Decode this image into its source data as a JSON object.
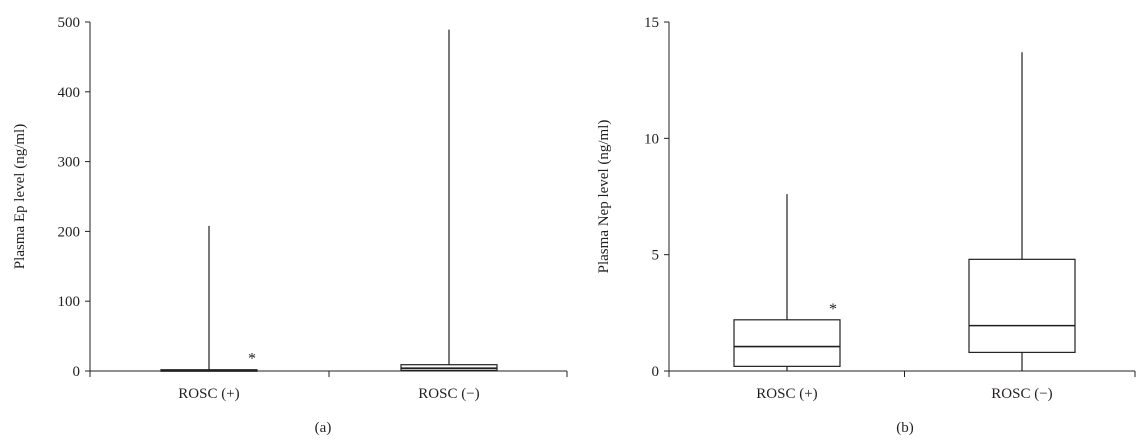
{
  "chart_data": [
    {
      "type": "box",
      "panel_label": "(a)",
      "ylabel": "Plasma Ep level (ng/ml)",
      "ylim": [
        0,
        500
      ],
      "yticks": [
        0,
        100,
        200,
        300,
        400,
        500
      ],
      "categories": [
        "ROSC (+)",
        "ROSC (−)"
      ],
      "boxes": [
        {
          "category": "ROSC (+)",
          "min": 0,
          "q1": 0.3,
          "median": 0.8,
          "q3": 1.8,
          "max": 208,
          "annotation": "*"
        },
        {
          "category": "ROSC (−)",
          "min": 0,
          "q1": 1,
          "median": 4,
          "q3": 9,
          "max": 489,
          "annotation": ""
        }
      ]
    },
    {
      "type": "box",
      "panel_label": "(b)",
      "ylabel": "Plasma Nep level (ng/ml)",
      "ylim": [
        0,
        15
      ],
      "yticks": [
        0,
        5,
        10,
        15
      ],
      "categories": [
        "ROSC (+)",
        "ROSC (−)"
      ],
      "boxes": [
        {
          "category": "ROSC (+)",
          "min": 0,
          "q1": 0.2,
          "median": 1.05,
          "q3": 2.2,
          "max": 7.6,
          "annotation": "*"
        },
        {
          "category": "ROSC (−)",
          "min": 0,
          "q1": 0.8,
          "median": 1.95,
          "q3": 4.8,
          "max": 13.7,
          "annotation": ""
        }
      ]
    }
  ]
}
